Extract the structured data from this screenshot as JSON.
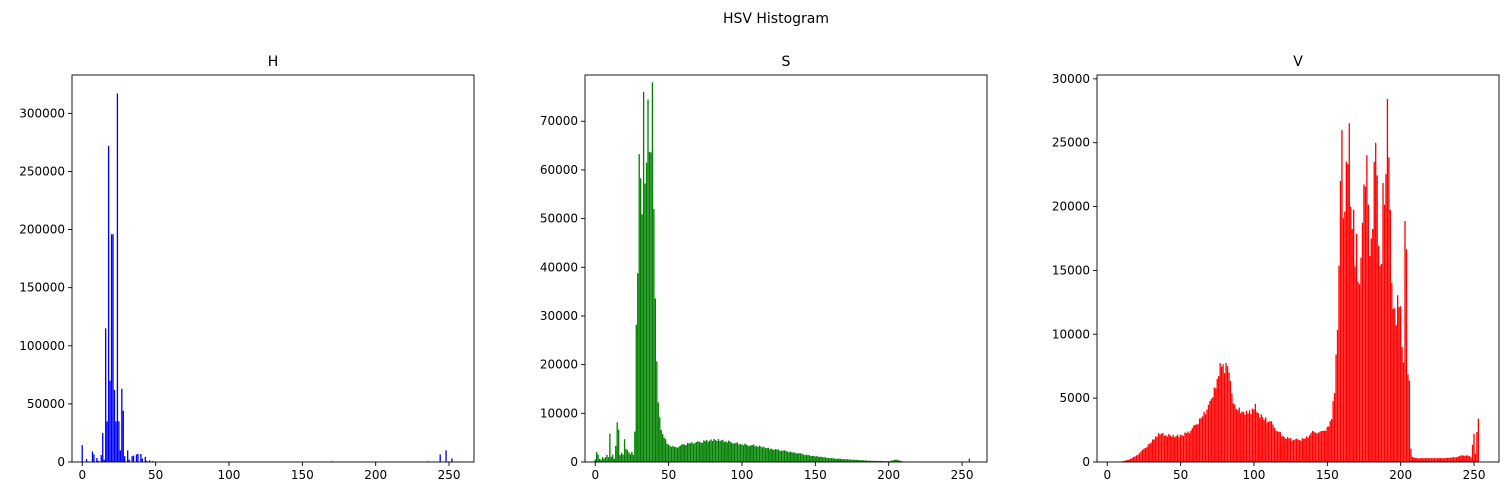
{
  "suptitle": "HSV Histogram",
  "chart_data": [
    {
      "type": "bar",
      "title": "H",
      "color": "#0000ff",
      "xlabel": "",
      "ylabel": "",
      "xlim": [
        -7,
        267
      ],
      "ylim": [
        0,
        333000
      ],
      "xticks": [
        0,
        50,
        100,
        150,
        200,
        250
      ],
      "yticks": [
        0,
        50000,
        100000,
        150000,
        200000,
        250000,
        300000
      ],
      "grid": false,
      "bins": [
        [
          0,
          14500
        ],
        [
          1,
          300
        ],
        [
          3,
          2500
        ],
        [
          4,
          500
        ],
        [
          7,
          9000
        ],
        [
          8,
          6500
        ],
        [
          10,
          3500
        ],
        [
          11,
          1000
        ],
        [
          13,
          6000
        ],
        [
          14,
          25000
        ],
        [
          15,
          2000
        ],
        [
          16,
          115000
        ],
        [
          17,
          35000
        ],
        [
          18,
          272000
        ],
        [
          19,
          70000
        ],
        [
          20,
          196000
        ],
        [
          21,
          196000
        ],
        [
          22,
          62000
        ],
        [
          23,
          35000
        ],
        [
          24,
          317000
        ],
        [
          25,
          35000
        ],
        [
          26,
          10000
        ],
        [
          27,
          63000
        ],
        [
          28,
          44000
        ],
        [
          29,
          5000
        ],
        [
          31,
          10000
        ],
        [
          32,
          2000
        ],
        [
          34,
          5000
        ],
        [
          35,
          5500
        ],
        [
          37,
          6500
        ],
        [
          38,
          7000
        ],
        [
          40,
          7000
        ],
        [
          41,
          3000
        ],
        [
          43,
          4500
        ],
        [
          44,
          1000
        ],
        [
          46,
          1500
        ],
        [
          48,
          800
        ],
        [
          50,
          500
        ],
        [
          55,
          500
        ],
        [
          60,
          400
        ],
        [
          70,
          300
        ],
        [
          80,
          300
        ],
        [
          90,
          300
        ],
        [
          100,
          300
        ],
        [
          110,
          300
        ],
        [
          120,
          300
        ],
        [
          130,
          300
        ],
        [
          140,
          300
        ],
        [
          150,
          300
        ],
        [
          160,
          300
        ],
        [
          170,
          700
        ],
        [
          180,
          300
        ],
        [
          190,
          300
        ],
        [
          200,
          300
        ],
        [
          210,
          300
        ],
        [
          220,
          300
        ],
        [
          230,
          300
        ],
        [
          236,
          700
        ],
        [
          244,
          6500
        ],
        [
          248,
          10000
        ],
        [
          252,
          3000
        ]
      ]
    },
    {
      "type": "bar",
      "title": "S",
      "color": "#008000",
      "xlabel": "",
      "ylabel": "",
      "xlim": [
        -7,
        267
      ],
      "ylim": [
        0,
        79500
      ],
      "xticks": [
        0,
        50,
        100,
        150,
        200,
        250
      ],
      "yticks": [
        0,
        10000,
        20000,
        30000,
        40000,
        50000,
        60000,
        70000
      ],
      "grid": false,
      "profile": [
        [
          0,
          600
        ],
        [
          1,
          2000
        ],
        [
          2,
          1500
        ],
        [
          3,
          700
        ],
        [
          4,
          500
        ],
        [
          5,
          1000
        ],
        [
          6,
          700
        ],
        [
          7,
          900
        ],
        [
          8,
          1500
        ],
        [
          9,
          1000
        ],
        [
          10,
          5500
        ],
        [
          11,
          1000
        ],
        [
          12,
          1500
        ],
        [
          13,
          700
        ],
        [
          14,
          3500
        ],
        [
          15,
          8000
        ],
        [
          16,
          6500
        ],
        [
          17,
          1500
        ],
        [
          18,
          2000
        ],
        [
          19,
          1500
        ],
        [
          20,
          4500
        ],
        [
          21,
          2500
        ],
        [
          22,
          2500
        ],
        [
          23,
          2000
        ],
        [
          24,
          1500
        ],
        [
          25,
          2000
        ],
        [
          26,
          1500
        ],
        [
          27,
          6500
        ],
        [
          28,
          30000
        ],
        [
          29,
          38000
        ],
        [
          30,
          62000
        ],
        [
          31,
          62000
        ],
        [
          32,
          53000
        ],
        [
          33,
          76000
        ],
        [
          34,
          55000
        ],
        [
          35,
          58000
        ],
        [
          36,
          76000
        ],
        [
          37,
          65000
        ],
        [
          38,
          60000
        ],
        [
          39,
          75000
        ],
        [
          40,
          52000
        ],
        [
          41,
          35000
        ],
        [
          42,
          22000
        ],
        [
          43,
          12000
        ],
        [
          44,
          9000
        ],
        [
          45,
          7000
        ],
        [
          46,
          6000
        ],
        [
          47,
          5000
        ],
        [
          48,
          4500
        ],
        [
          50,
          3500
        ],
        [
          55,
          3000
        ],
        [
          60,
          3500
        ],
        [
          65,
          3800
        ],
        [
          70,
          4000
        ],
        [
          75,
          4300
        ],
        [
          80,
          4600
        ],
        [
          85,
          4400
        ],
        [
          90,
          4200
        ],
        [
          95,
          4000
        ],
        [
          100,
          3700
        ],
        [
          105,
          3500
        ],
        [
          110,
          3300
        ],
        [
          115,
          3000
        ],
        [
          120,
          2700
        ],
        [
          125,
          2500
        ],
        [
          130,
          2200
        ],
        [
          135,
          1900
        ],
        [
          140,
          1700
        ],
        [
          145,
          1400
        ],
        [
          150,
          1200
        ],
        [
          155,
          1000
        ],
        [
          160,
          800
        ],
        [
          165,
          700
        ],
        [
          170,
          600
        ],
        [
          175,
          500
        ],
        [
          180,
          400
        ],
        [
          185,
          300
        ],
        [
          190,
          250
        ],
        [
          195,
          200
        ],
        [
          200,
          150
        ],
        [
          205,
          500
        ],
        [
          210,
          100
        ],
        [
          220,
          100
        ],
        [
          230,
          80
        ],
        [
          240,
          80
        ],
        [
          250,
          60
        ],
        [
          254,
          100
        ],
        [
          255,
          700
        ]
      ]
    },
    {
      "type": "bar",
      "title": "V",
      "color": "#ff0000",
      "xlabel": "",
      "ylabel": "",
      "xlim": [
        -7,
        267
      ],
      "ylim": [
        0,
        30300
      ],
      "xticks": [
        0,
        50,
        100,
        150,
        200,
        250
      ],
      "yticks": [
        0,
        5000,
        10000,
        15000,
        20000,
        25000,
        30000
      ],
      "grid": false,
      "profile": [
        [
          0,
          0
        ],
        [
          8,
          0
        ],
        [
          12,
          100
        ],
        [
          15,
          200
        ],
        [
          20,
          500
        ],
        [
          25,
          1000
        ],
        [
          30,
          1500
        ],
        [
          33,
          2000
        ],
        [
          36,
          2200
        ],
        [
          40,
          2100
        ],
        [
          45,
          2000
        ],
        [
          50,
          2100
        ],
        [
          55,
          2300
        ],
        [
          60,
          2800
        ],
        [
          65,
          3500
        ],
        [
          70,
          4500
        ],
        [
          73,
          5500
        ],
        [
          76,
          7000
        ],
        [
          78,
          7600
        ],
        [
          80,
          7400
        ],
        [
          82,
          7500
        ],
        [
          84,
          6000
        ],
        [
          86,
          4500
        ],
        [
          88,
          4000
        ],
        [
          90,
          4100
        ],
        [
          93,
          4000
        ],
        [
          96,
          3800
        ],
        [
          99,
          4100
        ],
        [
          101,
          4300
        ],
        [
          104,
          3600
        ],
        [
          108,
          3300
        ],
        [
          112,
          3000
        ],
        [
          116,
          2500
        ],
        [
          120,
          2000
        ],
        [
          125,
          1800
        ],
        [
          130,
          1700
        ],
        [
          135,
          1800
        ],
        [
          140,
          2300
        ],
        [
          144,
          2400
        ],
        [
          147,
          2300
        ],
        [
          150,
          2600
        ],
        [
          153,
          3500
        ],
        [
          155,
          5500
        ],
        [
          157,
          11000
        ],
        [
          158,
          16000
        ],
        [
          159,
          22000
        ],
        [
          160,
          25000
        ],
        [
          161,
          18000
        ],
        [
          162,
          20000
        ],
        [
          163,
          24000
        ],
        [
          164,
          22000
        ],
        [
          165,
          25500
        ],
        [
          166,
          20000
        ],
        [
          167,
          19000
        ],
        [
          168,
          21000
        ],
        [
          169,
          15000
        ],
        [
          170,
          17500
        ],
        [
          171,
          15000
        ],
        [
          172,
          14500
        ],
        [
          173,
          16000
        ],
        [
          174,
          18000
        ],
        [
          175,
          20500
        ],
        [
          176,
          22000
        ],
        [
          177,
          24500
        ],
        [
          178,
          19000
        ],
        [
          179,
          15500
        ],
        [
          180,
          17500
        ],
        [
          181,
          19000
        ],
        [
          182,
          25000
        ],
        [
          183,
          24500
        ],
        [
          184,
          22000
        ],
        [
          185,
          18000
        ],
        [
          186,
          16000
        ],
        [
          187,
          15500
        ],
        [
          188,
          21000
        ],
        [
          189,
          19000
        ],
        [
          190,
          23000
        ],
        [
          191,
          29000
        ],
        [
          192,
          22500
        ],
        [
          193,
          19000
        ],
        [
          194,
          14000
        ],
        [
          195,
          12500
        ],
        [
          196,
          12800
        ],
        [
          197,
          10500
        ],
        [
          198,
          12800
        ],
        [
          199,
          12900
        ],
        [
          200,
          12700
        ],
        [
          201,
          9000
        ],
        [
          202,
          7500
        ],
        [
          203,
          17800
        ],
        [
          204,
          17000
        ],
        [
          205,
          7000
        ],
        [
          206,
          6000
        ],
        [
          207,
          1000
        ],
        [
          208,
          400
        ],
        [
          210,
          300
        ],
        [
          220,
          300
        ],
        [
          230,
          300
        ],
        [
          238,
          400
        ],
        [
          242,
          500
        ],
        [
          246,
          500
        ],
        [
          248,
          400
        ],
        [
          250,
          2200
        ],
        [
          251,
          700
        ],
        [
          252,
          2500
        ],
        [
          253,
          3400
        ]
      ]
    }
  ]
}
